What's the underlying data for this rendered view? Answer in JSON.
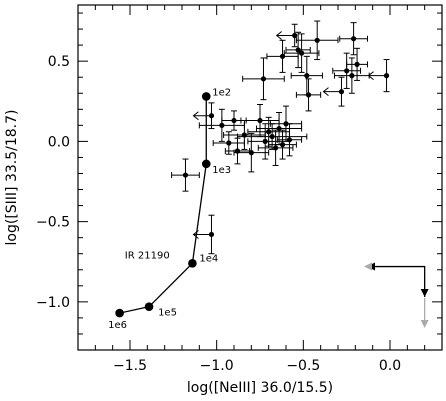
{
  "chart_data": {
    "type": "scatter",
    "xlabel": "log([NeIII] 36.0/15.5)",
    "ylabel": "log([SIII] 33.5/18.7)",
    "xlim": [
      -1.8,
      0.3
    ],
    "ylim": [
      -1.3,
      0.85
    ],
    "xticks": [
      {
        "value": -1.5,
        "label": "−1.5"
      },
      {
        "value": -1.0,
        "label": "−1.0"
      },
      {
        "value": -0.5,
        "label": "−0.5"
      },
      {
        "value": 0.0,
        "label": "0.0"
      }
    ],
    "yticks": [
      {
        "value": 0.5,
        "label": "0.5"
      },
      {
        "value": 0.0,
        "label": "0.0"
      },
      {
        "value": -0.5,
        "label": "−0.5"
      },
      {
        "value": -1.0,
        "label": "−1.0"
      }
    ],
    "model_track": {
      "points": [
        {
          "x": -1.56,
          "y": -1.07,
          "label": "1e6"
        },
        {
          "x": -1.39,
          "y": -1.03,
          "label": "1e5"
        },
        {
          "x": -1.14,
          "y": -0.76,
          "label": "1e4"
        },
        {
          "x": -1.06,
          "y": -0.14,
          "label": "1e3"
        },
        {
          "x": -1.06,
          "y": 0.28,
          "label": "1e2"
        }
      ]
    },
    "annotation": {
      "text": "IR 21190",
      "x": -1.53,
      "y": -0.73
    },
    "galaxies": [
      {
        "x": -1.18,
        "y": -0.21,
        "xerr": 0.08,
        "yerr": 0.1
      },
      {
        "x": -1.03,
        "y": 0.16,
        "xerr": 0.08,
        "yerr": 0.08,
        "xlimit": "upper"
      },
      {
        "x": -0.97,
        "y": 0.1,
        "xerr": 0.13,
        "yerr": 0.1
      },
      {
        "x": -0.93,
        "y": -0.01,
        "xerr": 0.09,
        "yerr": 0.07
      },
      {
        "x": -0.9,
        "y": 0.13,
        "xerr": 0.07,
        "yerr": 0.06
      },
      {
        "x": -0.88,
        "y": -0.06,
        "xerr": 0.07,
        "yerr": 0.08
      },
      {
        "x": -0.84,
        "y": 0.04,
        "xerr": 0.12,
        "yerr": 0.09
      },
      {
        "x": -0.8,
        "y": -0.07,
        "xerr": 0.1,
        "yerr": 0.12
      },
      {
        "x": -0.75,
        "y": 0.13,
        "xerr": 0.11,
        "yerr": 0.1
      },
      {
        "x": -0.72,
        "y": 0.0,
        "xerr": 0.1,
        "yerr": 0.11
      },
      {
        "x": -0.7,
        "y": 0.06,
        "xerr": 0.12,
        "yerr": 0.09
      },
      {
        "x": -0.68,
        "y": 0.03,
        "xerr": 0.2,
        "yerr": 0.08
      },
      {
        "x": -0.66,
        "y": -0.04,
        "xerr": 0.1,
        "yerr": 0.11
      },
      {
        "x": -0.64,
        "y": 0.08,
        "xerr": 0.13,
        "yerr": 0.1
      },
      {
        "x": -0.62,
        "y": -0.02,
        "xerr": 0.08,
        "yerr": 0.09
      },
      {
        "x": -0.6,
        "y": 0.11,
        "xerr": 0.09,
        "yerr": 0.11
      },
      {
        "x": -0.58,
        "y": 0.01,
        "xerr": 0.07,
        "yerr": 0.1
      },
      {
        "x": -0.73,
        "y": 0.39,
        "xerr": 0.12,
        "yerr": 0.13
      },
      {
        "x": -0.62,
        "y": 0.53,
        "xerr": 0.09,
        "yerr": 0.1
      },
      {
        "x": -0.55,
        "y": 0.66,
        "xerr": 0.07,
        "yerr": 0.07,
        "xlimit": "upper"
      },
      {
        "x": -0.53,
        "y": 0.57,
        "xerr": 0.07,
        "yerr": 0.11
      },
      {
        "x": -0.51,
        "y": 0.55,
        "xerr": 0.1,
        "yerr": 0.12
      },
      {
        "x": -0.48,
        "y": 0.41,
        "xerr": 0.09,
        "yerr": 0.12
      },
      {
        "x": -0.47,
        "y": 0.29,
        "xerr": 0.07,
        "yerr": 0.1
      },
      {
        "x": -0.42,
        "y": 0.63,
        "xerr": 0.12,
        "yerr": 0.12
      },
      {
        "x": -0.28,
        "y": 0.31,
        "xerr": 0.08,
        "yerr": 0.09,
        "xlimit": "upper"
      },
      {
        "x": -0.25,
        "y": 0.44,
        "xerr": 0.08,
        "yerr": 0.11
      },
      {
        "x": -0.22,
        "y": 0.41,
        "xerr": 0.1,
        "yerr": 0.11
      },
      {
        "x": -0.21,
        "y": 0.64,
        "xerr": 0.08,
        "yerr": 0.1
      },
      {
        "x": -0.19,
        "y": 0.48,
        "xerr": 0.06,
        "yerr": 0.1
      },
      {
        "x": -0.02,
        "y": 0.41,
        "xerr": 0.06,
        "yerr": 0.1,
        "xlimit": "upper"
      },
      {
        "x": -1.03,
        "y": -0.58,
        "xerr": 0.0,
        "yerr": 0.12,
        "xlimit": "upper"
      }
    ],
    "legend_arrows": {
      "origin": {
        "x": 0.2,
        "y": -0.78
      },
      "black_colour": "#000000",
      "grey_colour": "#aaaaaa"
    },
    "grid": false
  }
}
